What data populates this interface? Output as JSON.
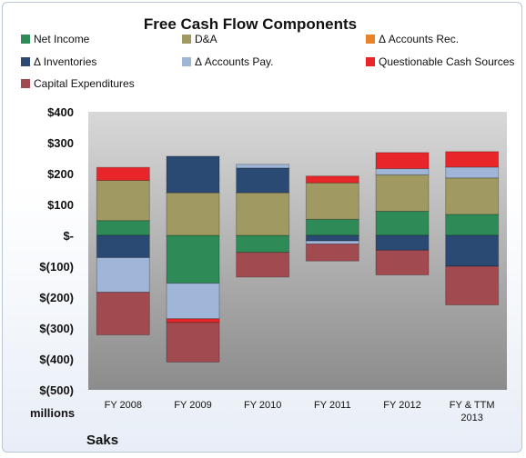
{
  "chart_data": {
    "type": "bar",
    "stacked": true,
    "title": "Free Cash Flow Components",
    "units_label": "millions",
    "company": "Saks",
    "categories": [
      "FY 2008",
      "FY 2009",
      "FY 2010",
      "FY 2011",
      "FY 2012",
      "FY & TTM 2013"
    ],
    "y_tick_labels": [
      "$400",
      "$300",
      "$200",
      "$100",
      "$-",
      "$(100)",
      "$(200)",
      "$(300)",
      "$(400)",
      "$(500)"
    ],
    "ylim": [
      -500,
      400
    ],
    "grid": false,
    "legend_position": "top",
    "series": [
      {
        "name": "Net Income",
        "color": "#2e8b57",
        "values": [
          48,
          -155,
          -55,
          52,
          78,
          68
        ]
      },
      {
        "name": "D&A",
        "color": "#a09a62",
        "values": [
          130,
          138,
          138,
          118,
          118,
          118
        ]
      },
      {
        "name": "Δ Accounts Rec.",
        "color": "#e8832a",
        "values": [
          0,
          0,
          0,
          0,
          0,
          0
        ]
      },
      {
        "name": "Δ Inventories",
        "color": "#2b4a73",
        "values": [
          -72,
          118,
          80,
          -18,
          -48,
          -100
        ]
      },
      {
        "name": "Δ Accounts Pay.",
        "color": "#9fb6d8",
        "values": [
          -112,
          -115,
          12,
          -10,
          20,
          35
        ]
      },
      {
        "name": "Questionable Cash Sources",
        "color": "#e8262a",
        "values": [
          42,
          -12,
          0,
          22,
          52,
          50
        ]
      },
      {
        "name": "Capital Expenditures",
        "color": "#a14a4f",
        "values": [
          -138,
          -128,
          -80,
          -55,
          -80,
          -125
        ]
      }
    ]
  }
}
